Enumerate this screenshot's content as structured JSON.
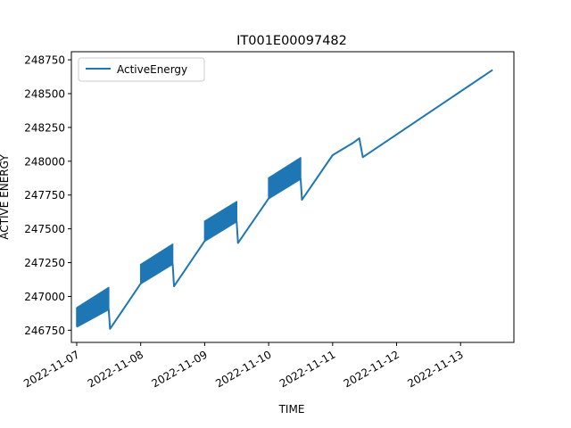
{
  "chart_data": {
    "type": "line",
    "title": "IT001E00097482",
    "xlabel": "TIME",
    "ylabel": "ACTIVE ENERGY",
    "legend_position": "top-left",
    "grid": false,
    "x_range": [
      "2022-11-06T22:00",
      "2022-11-13T20:00"
    ],
    "ylim": [
      246660,
      248810
    ],
    "x_ticks": [
      "2022-11-07",
      "2022-11-08",
      "2022-11-09",
      "2022-11-10",
      "2022-11-11",
      "2022-11-12",
      "2022-11-13"
    ],
    "y_ticks": [
      246750,
      247000,
      247250,
      247500,
      247750,
      248000,
      248250,
      248500,
      248750
    ],
    "series": [
      {
        "name": "ActiveEnergy",
        "color": "#1f77b4",
        "anchors": [
          [
            "2022-11-07T00:00",
            246775
          ],
          [
            "2022-11-07T12:00",
            246905
          ],
          [
            "2022-11-07T12:30",
            246760
          ],
          [
            "2022-11-08T00:00",
            247095
          ],
          [
            "2022-11-08T12:00",
            247240
          ],
          [
            "2022-11-08T12:30",
            247075
          ],
          [
            "2022-11-09T00:00",
            247410
          ],
          [
            "2022-11-09T12:00",
            247555
          ],
          [
            "2022-11-09T12:30",
            247395
          ],
          [
            "2022-11-10T00:00",
            247725
          ],
          [
            "2022-11-10T12:00",
            247870
          ],
          [
            "2022-11-10T12:30",
            247715
          ],
          [
            "2022-11-11T00:00",
            248045
          ],
          [
            "2022-11-11T08:00",
            248140
          ],
          [
            "2022-11-11T10:00",
            248170
          ],
          [
            "2022-11-11T11:20",
            248030
          ],
          [
            "2022-11-13T12:00",
            248675
          ]
        ],
        "oscillation_bands": [
          {
            "start": "2022-11-07T00:00",
            "end": "2022-11-07T12:00",
            "low_start": 246775,
            "low_end": 246905,
            "high_start": 246920,
            "high_end": 247070
          },
          {
            "start": "2022-11-08T00:00",
            "end": "2022-11-08T12:00",
            "low_start": 247095,
            "low_end": 247240,
            "high_start": 247240,
            "high_end": 247390
          },
          {
            "start": "2022-11-09T00:00",
            "end": "2022-11-09T12:00",
            "low_start": 247410,
            "low_end": 247555,
            "high_start": 247560,
            "high_end": 247705
          },
          {
            "start": "2022-11-10T00:00",
            "end": "2022-11-10T12:00",
            "low_start": 247725,
            "low_end": 247870,
            "high_start": 247880,
            "high_end": 248030
          }
        ]
      }
    ]
  }
}
